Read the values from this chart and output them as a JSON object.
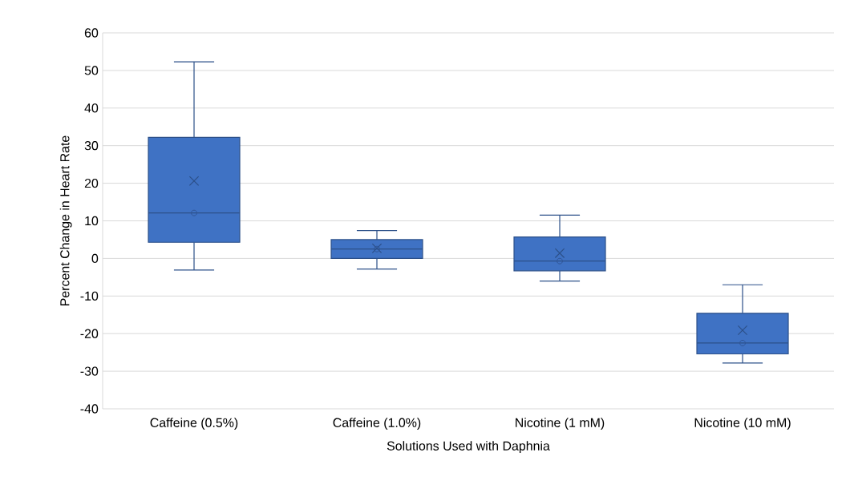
{
  "chart_data": {
    "type": "box",
    "xlabel": "Solutions Used with Daphnia",
    "ylabel": "Percent Change in Heart Rate",
    "categories": [
      "Caffeine (0.5%)",
      "Caffeine (1.0%)",
      "Nicotine (1 mM)",
      "Nicotine (10 mM)"
    ],
    "boxes": [
      {
        "low": -3.1,
        "q1": 4.3,
        "median": 12.1,
        "q3": 32.2,
        "high": 52.3,
        "mean": 20.6
      },
      {
        "low": -2.8,
        "q1": 0,
        "median": 2.5,
        "q3": 5.0,
        "high": 7.4,
        "mean": 2.7
      },
      {
        "low": -6.0,
        "q1": -3.3,
        "median": -0.7,
        "q3": 5.7,
        "high": 11.5,
        "mean": 1.4
      },
      {
        "low": -27.8,
        "q1": -25.4,
        "median": -22.5,
        "q3": -14.6,
        "high": -7.0,
        "mean": -19.1
      }
    ],
    "series": [
      {
        "type": "scatter",
        "marker": "circle",
        "color": "#2f5597",
        "x": [
          "Caffeine (0.5%)",
          "Caffeine (1.0%)",
          "Nicotine (1 mM)",
          "Nicotine (10 mM)"
        ],
        "values": [
          12.1,
          2.5,
          -0.7,
          -22.5
        ]
      }
    ],
    "color": "#3f72c4",
    "ylim": [
      -40,
      60
    ],
    "yticks": [
      -40,
      -30,
      -20,
      -10,
      0,
      10,
      20,
      30,
      40,
      50,
      60
    ],
    "grid": "y"
  }
}
